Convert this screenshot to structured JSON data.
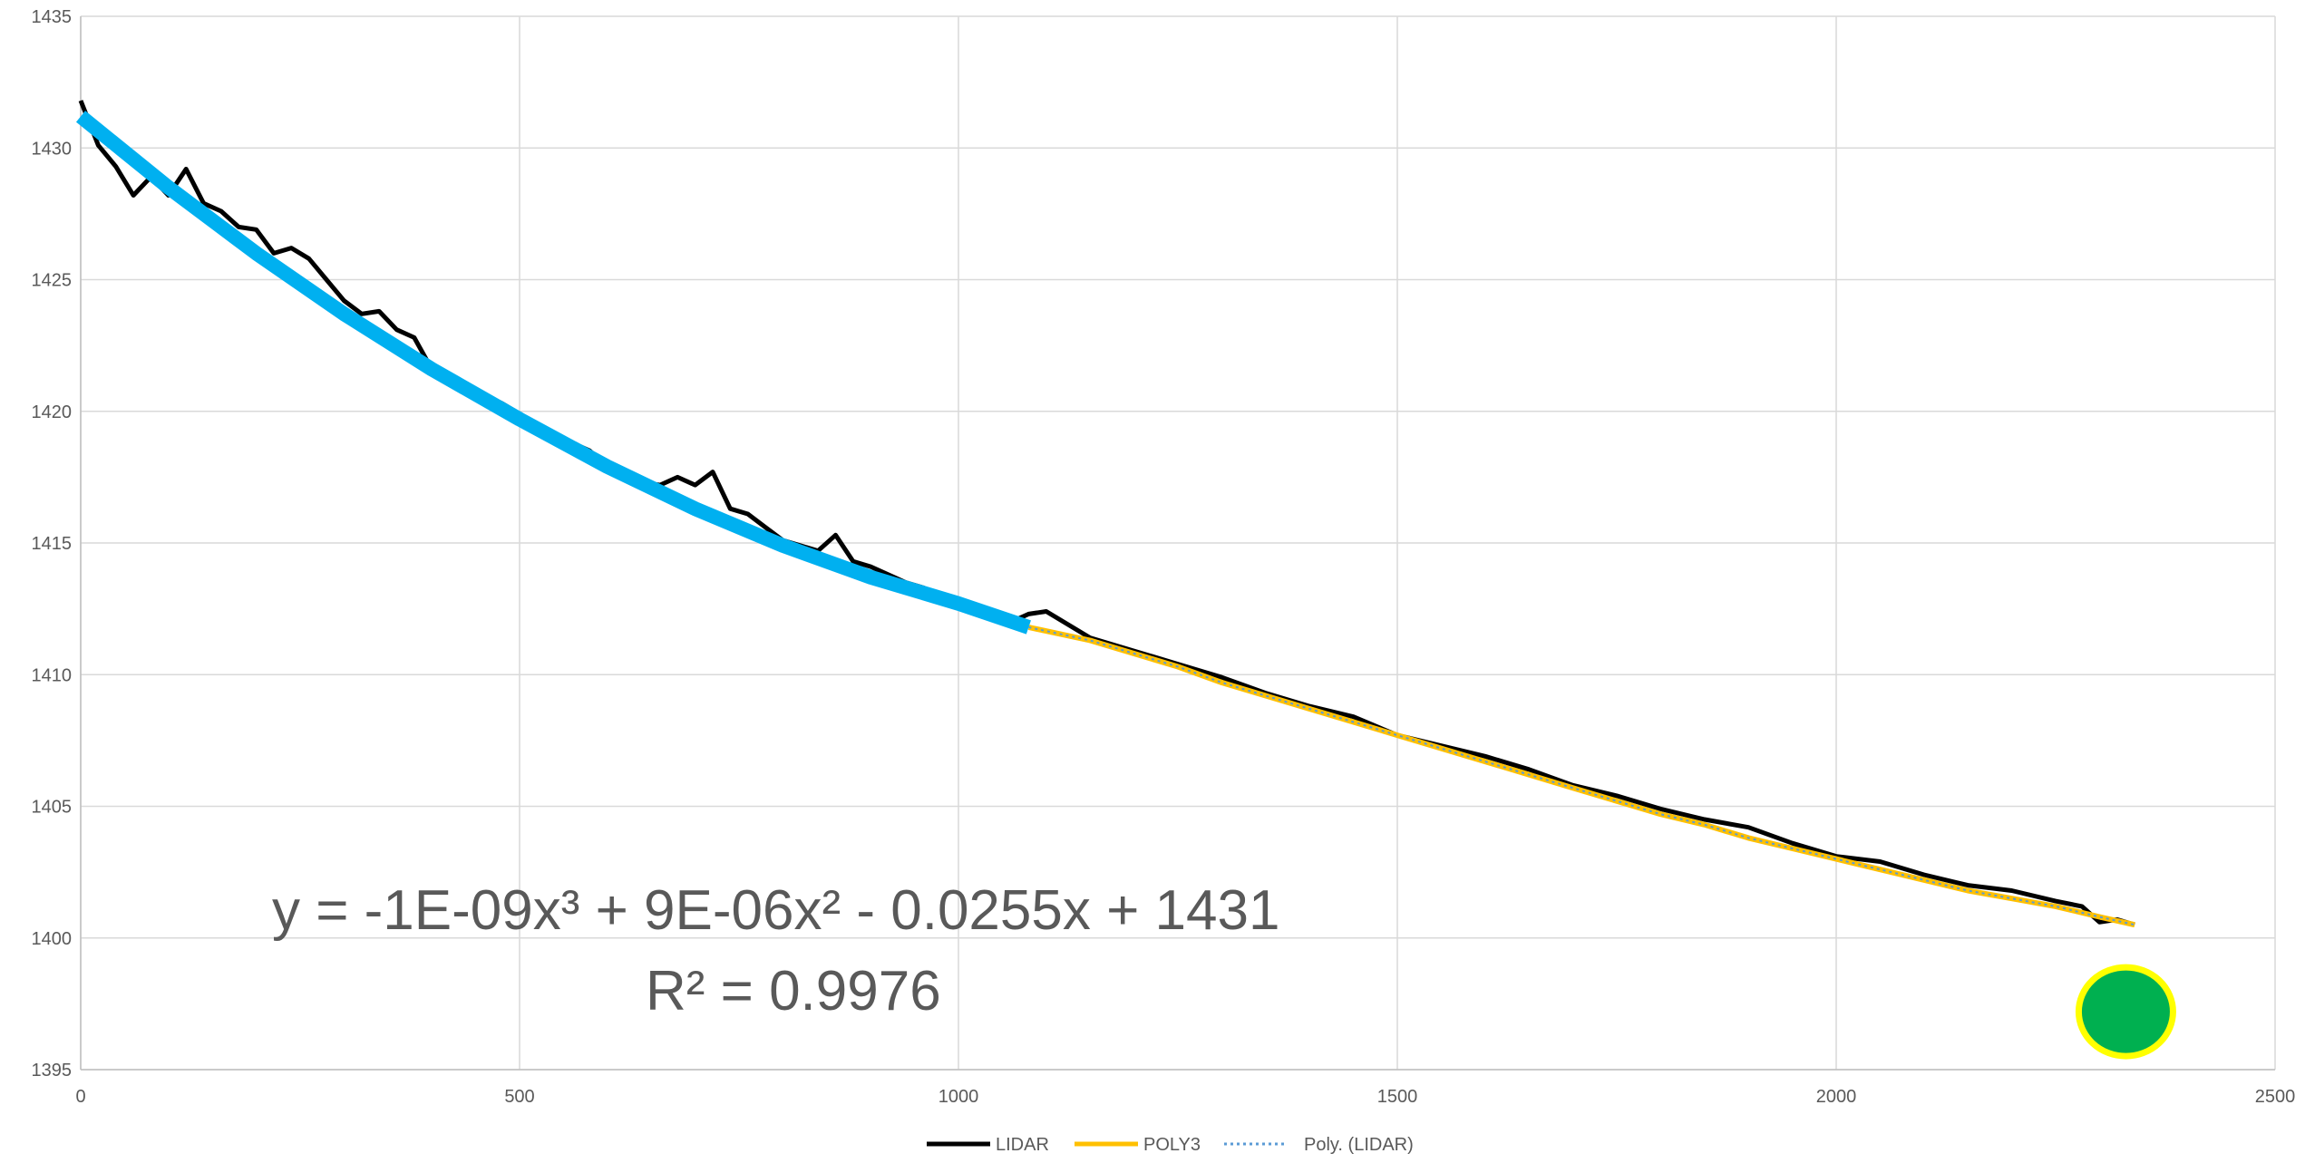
{
  "chart_data": {
    "type": "line",
    "title": "",
    "xlabel": "",
    "ylabel": "",
    "xlim": [
      0,
      2500
    ],
    "ylim": [
      1395,
      1435
    ],
    "x_ticks": [
      "0",
      "500",
      "1000",
      "1500",
      "2000",
      "2500"
    ],
    "y_ticks": [
      "1395",
      "1400",
      "1405",
      "1410",
      "1415",
      "1420",
      "1425",
      "1430",
      "1435"
    ],
    "grid": true,
    "legend_position": "bottom",
    "series": [
      {
        "name": "LIDAR",
        "color": "#000000",
        "x": [
          0,
          20,
          40,
          60,
          80,
          100,
          120,
          140,
          160,
          180,
          200,
          220,
          240,
          260,
          280,
          300,
          320,
          340,
          360,
          380,
          400,
          420,
          440,
          460,
          480,
          500,
          520,
          540,
          560,
          580,
          600,
          620,
          640,
          660,
          680,
          700,
          720,
          740,
          760,
          780,
          800,
          820,
          840,
          860,
          880,
          900,
          920,
          940,
          960,
          980,
          1000,
          1020,
          1040,
          1060,
          1080,
          1100,
          1150,
          1200,
          1250,
          1300,
          1350,
          1400,
          1450,
          1500,
          1550,
          1600,
          1650,
          1700,
          1750,
          1800,
          1850,
          1900,
          1950,
          2000,
          2050,
          2100,
          2150,
          2200,
          2250,
          2280,
          2300,
          2320,
          2340
        ],
        "y": [
          1431.8,
          1430.1,
          1429.3,
          1428.2,
          1428.9,
          1428.2,
          1429.2,
          1427.9,
          1427.6,
          1427.0,
          1426.9,
          1426.0,
          1426.2,
          1425.8,
          1425.0,
          1424.2,
          1423.7,
          1423.8,
          1423.1,
          1422.8,
          1421.6,
          1421.4,
          1421.0,
          1420.6,
          1420.3,
          1419.9,
          1419.4,
          1419.0,
          1418.8,
          1418.5,
          1417.9,
          1417.6,
          1417.3,
          1417.2,
          1417.5,
          1417.2,
          1417.7,
          1416.3,
          1416.1,
          1415.6,
          1415.1,
          1414.9,
          1414.7,
          1415.3,
          1414.3,
          1414.1,
          1413.8,
          1413.5,
          1413.3,
          1413.0,
          1412.8,
          1412.5,
          1412.2,
          1412.0,
          1412.3,
          1412.4,
          1411.4,
          1410.9,
          1410.4,
          1409.9,
          1409.3,
          1408.8,
          1408.4,
          1407.7,
          1407.3,
          1406.9,
          1406.4,
          1405.8,
          1405.4,
          1404.9,
          1404.5,
          1404.2,
          1403.6,
          1403.1,
          1402.9,
          1402.4,
          1402.0,
          1401.8,
          1401.4,
          1401.2,
          1400.6,
          1400.7,
          1400.5
        ]
      },
      {
        "name": "POLY3",
        "color": "#FFC000",
        "x": [
          1080,
          1150,
          1200,
          1250,
          1300,
          1350,
          1400,
          1450,
          1500,
          1550,
          1600,
          1650,
          1700,
          1750,
          1800,
          1850,
          1900,
          1950,
          2000,
          2050,
          2100,
          2150,
          2200,
          2250,
          2300,
          2340
        ],
        "y": [
          1411.8,
          1411.3,
          1410.8,
          1410.3,
          1409.7,
          1409.2,
          1408.7,
          1408.2,
          1407.7,
          1407.2,
          1406.7,
          1406.2,
          1405.7,
          1405.2,
          1404.7,
          1404.3,
          1403.8,
          1403.4,
          1403.0,
          1402.6,
          1402.2,
          1401.8,
          1401.5,
          1401.2,
          1400.8,
          1400.5
        ]
      },
      {
        "name": "Poly. (LIDAR)",
        "color": "#00B0F0",
        "x": [
          0,
          100,
          200,
          300,
          400,
          500,
          600,
          700,
          800,
          900,
          1000,
          1080
        ],
        "y": [
          1431.2,
          1428.5,
          1426.0,
          1423.7,
          1421.6,
          1419.7,
          1417.9,
          1416.3,
          1414.9,
          1413.7,
          1412.7,
          1411.8
        ]
      }
    ],
    "marker": {
      "x": 2330,
      "y": 1397.2,
      "fill": "#00B050",
      "stroke": "#FFFF00"
    },
    "annotations": {
      "equation": "y = -1E-09x³ + 9E-06x² - 0.0255x + 1431",
      "r_squared": "R² = 0.9976"
    }
  }
}
